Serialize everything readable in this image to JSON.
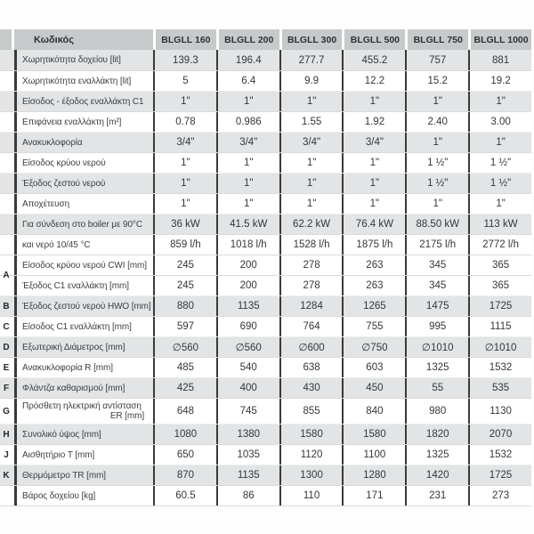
{
  "page": {
    "background": "#fdfdfd"
  },
  "table": {
    "colors": {
      "header_bg": "#c6cacb",
      "stripe_bg": "#e2e4e5",
      "dark_line": "#3a3a3a",
      "text": "#3b3f42",
      "row_line": "#d8dadb"
    },
    "header": {
      "code_label": "Κωδικός",
      "models": [
        "BLGLL 160",
        "BLGLL 200",
        "BLGLL 300",
        "BLGLL 500",
        "BLGLL 750",
        "BLGLL 1000"
      ]
    },
    "rows": [
      {
        "letter": "",
        "label": "Χωρητικότητα δοχείου [lit]",
        "values": [
          "139.3",
          "196.4",
          "277.7",
          "455.2",
          "757",
          "881"
        ],
        "shade": "gray"
      },
      {
        "letter": "",
        "label": "Χωρητικότητα εναλλάκτη [lit]",
        "values": [
          "5",
          "6.4",
          "9.9",
          "12.2",
          "15.2",
          "19.2"
        ],
        "shade": "white"
      },
      {
        "letter": "",
        "label": "Είσοδος - έξοδος εναλλάκτη C1",
        "values": [
          "1\"",
          "1\"",
          "1\"",
          "1\"",
          "1\"",
          "1\""
        ],
        "shade": "gray"
      },
      {
        "letter": "",
        "label": "Επιφάνεια εναλλάκτη [m²]",
        "values": [
          "0.78",
          "0.986",
          "1.55",
          "1.92",
          "2.40",
          "3.00"
        ],
        "shade": "white"
      },
      {
        "letter": "",
        "label": "Ανακυκλοφορία",
        "values": [
          "3/4\"",
          "3/4\"",
          "3/4\"",
          "3/4\"",
          "1\"",
          "1\""
        ],
        "shade": "gray"
      },
      {
        "letter": "",
        "label": "Είσοδος κρύου νερού",
        "values": [
          "1\"",
          "1\"",
          "1\"",
          "1\"",
          "1 ½\"",
          "1 ½\""
        ],
        "shade": "white"
      },
      {
        "letter": "",
        "label": "Έξοδος ζεστού νερού",
        "values": [
          "1\"",
          "1\"",
          "1\"",
          "1\"",
          "1 ½\"",
          "1 ½\""
        ],
        "shade": "gray"
      },
      {
        "letter": "",
        "label": "Αποχέτευση",
        "values": [
          "1\"",
          "1\"",
          "1\"",
          "1\"",
          "1\"",
          "1\""
        ],
        "shade": "white"
      },
      {
        "letter": "",
        "label": "Για σύνδεση στο boiler με 90°C",
        "values": [
          "36 kW",
          "41.5 kW",
          "62.2 kW",
          "76.4 kW",
          "88.50 kW",
          "113 kW"
        ],
        "shade": "gray"
      },
      {
        "letter": "",
        "label": "και νερό 10/45 °C",
        "values": [
          "859 l/h",
          "1018 l/h",
          "1528 l/h",
          "1875 l/h",
          "2175 l/h",
          "2772 l/h"
        ],
        "shade": "white"
      },
      {
        "letter": "A",
        "letter_span": 2,
        "label": "Είσοδος κρύου νερού CWI [mm]",
        "values": [
          "245",
          "200",
          "278",
          "263",
          "345",
          "365"
        ],
        "shade": "white"
      },
      {
        "letter": "",
        "label": "Έξοδος C1 εναλλάκτη [mm]",
        "values": [
          "245",
          "200",
          "278",
          "263",
          "345",
          "365"
        ],
        "shade": "white"
      },
      {
        "letter": "B",
        "label": "Έξοδος ζεστού νερού HWO [mm]",
        "values": [
          "880",
          "1135",
          "1284",
          "1265",
          "1475",
          "1725"
        ],
        "shade": "gray"
      },
      {
        "letter": "C",
        "label": "Είσοδος C1 εναλλάκτη [mm]",
        "values": [
          "597",
          "690",
          "764",
          "755",
          "995",
          "1115"
        ],
        "shade": "white"
      },
      {
        "letter": "D",
        "label": "Εξωτερική Διάμετρος [mm]",
        "values": [
          "∅560",
          "∅560",
          "∅600",
          "∅750",
          "∅1010",
          "∅1010"
        ],
        "shade": "gray"
      },
      {
        "letter": "E",
        "label": "Ανακυκλοφορία R [mm]",
        "values": [
          "485",
          "540",
          "638",
          "603",
          "1325",
          "1532"
        ],
        "shade": "white"
      },
      {
        "letter": "F",
        "label": "Φλάντζα καθαρισμού [mm]",
        "values": [
          "425",
          "400",
          "430",
          "450",
          "55",
          "535"
        ],
        "shade": "gray"
      },
      {
        "letter": "G",
        "label": "Πρόσθετη ηλεκτρική αντίσταση",
        "label2": "ER [mm]",
        "values": [
          "648",
          "745",
          "855",
          "840",
          "980",
          "1130"
        ],
        "shade": "white",
        "tall": true
      },
      {
        "letter": "H",
        "label": "Συνολικό ύψος [mm]",
        "values": [
          "1080",
          "1380",
          "1580",
          "1580",
          "1820",
          "2070"
        ],
        "shade": "gray"
      },
      {
        "letter": "J",
        "label": "Αισθητήριο T [mm]",
        "values": [
          "650",
          "1035",
          "1120",
          "1100",
          "1325",
          "1532"
        ],
        "shade": "white"
      },
      {
        "letter": "K",
        "label": "Θερμόμετρο TR [mm]",
        "values": [
          "870",
          "1135",
          "1300",
          "1280",
          "1420",
          "1725"
        ],
        "shade": "gray"
      },
      {
        "letter": "",
        "label": "Βάρος δοχείου [kg]",
        "values": [
          "60.5",
          "86",
          "110",
          "171",
          "231",
          "273"
        ],
        "shade": "white"
      }
    ]
  }
}
